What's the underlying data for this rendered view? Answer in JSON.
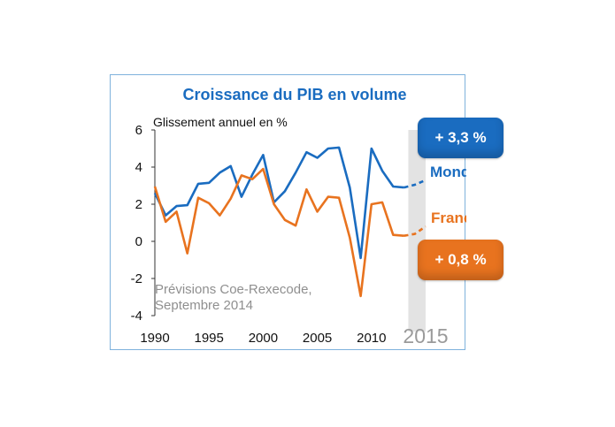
{
  "chart_data": {
    "type": "line",
    "title": "Croissance du PIB en volume",
    "ylabel": "Glissement annuel en %",
    "ylim": [
      -4,
      6
    ],
    "yticks": [
      "6",
      "4",
      "2",
      "0",
      "-2",
      "-4"
    ],
    "xlim": [
      1990,
      2015
    ],
    "xticks": [
      "1990",
      "1995",
      "2000",
      "2005",
      "2010"
    ],
    "xtick_highlight": "2015",
    "forecast_start": 2013.4,
    "forecast_note": [
      "Prévisions Coe-Rexecode,",
      "Septembre 2014"
    ],
    "colors": {
      "monde": "#1a6cc0",
      "france": "#e8731f",
      "title": "#1a6cc0",
      "forecast_band": "#e3e3e3",
      "badge_monde": "#1a6cc0",
      "badge_france": "#e8731f"
    },
    "series": [
      {
        "name": "Monde",
        "forecast_label": "+ 3,3 %",
        "x": [
          1990,
          1991,
          1992,
          1993,
          1994,
          1995,
          1996,
          1997,
          1998,
          1999,
          2000,
          2001,
          2002,
          2003,
          2004,
          2005,
          2006,
          2007,
          2008,
          2009,
          2010,
          2011,
          2012,
          2013,
          2014,
          2015
        ],
        "values": [
          2.6,
          1.4,
          1.9,
          1.95,
          3.1,
          3.15,
          3.7,
          4.05,
          2.4,
          3.6,
          4.65,
          2.1,
          2.7,
          3.7,
          4.8,
          4.5,
          5.0,
          5.05,
          2.9,
          -0.9,
          5.0,
          3.8,
          2.95,
          2.9,
          3.05,
          3.3
        ]
      },
      {
        "name": "France",
        "forecast_label": "+ 0,8 %",
        "x": [
          1990,
          1991,
          1992,
          1993,
          1994,
          1995,
          1996,
          1997,
          1998,
          1999,
          2000,
          2001,
          2002,
          2003,
          2004,
          2005,
          2006,
          2007,
          2008,
          2009,
          2010,
          2011,
          2012,
          2013,
          2014,
          2015
        ],
        "values": [
          2.95,
          1.05,
          1.6,
          -0.65,
          2.35,
          2.05,
          1.4,
          2.3,
          3.55,
          3.35,
          3.9,
          2.0,
          1.15,
          0.85,
          2.8,
          1.6,
          2.4,
          2.35,
          0.2,
          -2.95,
          2.0,
          2.1,
          0.35,
          0.3,
          0.4,
          0.8
        ]
      }
    ],
    "last_actual_year": 2013
  }
}
